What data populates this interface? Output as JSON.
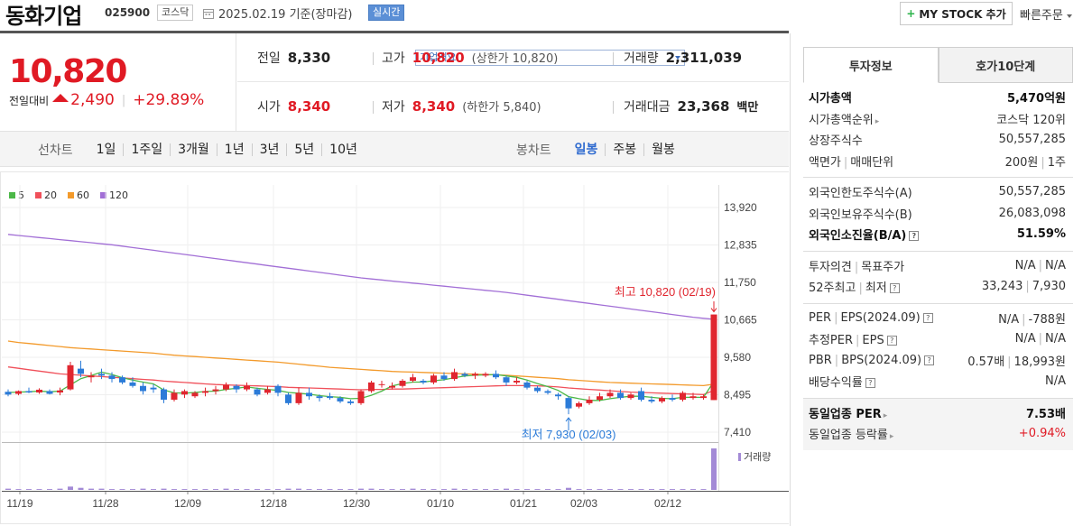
{
  "header": {
    "name": "동화기업",
    "code": "025900",
    "market": "코스닥",
    "date": "2025.02.19 기준(장마감)",
    "live": "실시간",
    "company": "기업개요",
    "mystock": "MY STOCK 추가",
    "quick": "빠른주문"
  },
  "price": {
    "now": "10,820",
    "diff_label": "전일대비",
    "diff": "2,490",
    "rate": "+29.89%"
  },
  "summary": {
    "prev_k": "전일",
    "prev_v": "8,330",
    "high_k": "고가",
    "high_v": "10,820",
    "upper_k": "(상한가",
    "upper_v": "10,820)",
    "volume_k": "거래량",
    "volume_v": "2,311,039",
    "open_k": "시가",
    "open_v": "8,340",
    "low_k": "저가",
    "low_v": "8,340",
    "lower_k": "(하한가",
    "lower_v": "5,840)",
    "amount_k": "거래대금",
    "amount_v": "23,368",
    "amount_u": "백만"
  },
  "periods": {
    "line_label": "선차트",
    "line": [
      "1일",
      "1주일",
      "3개월",
      "1년",
      "3년",
      "5년",
      "10년"
    ],
    "candle_label": "봉차트",
    "candle": [
      "일봉",
      "주봉",
      "월봉"
    ],
    "active": "일봉"
  },
  "chart_data": {
    "type": "candlestick",
    "legend": [
      "5",
      "20",
      "60",
      "120"
    ],
    "colors": {
      "ma5": "#4cb848",
      "ma20": "#f0505a",
      "ma60": "#f39a2b",
      "ma120": "#a26fd6",
      "up": "#e0262f",
      "down": "#2b7bd8",
      "volume": "#a38ad6"
    },
    "y_ticks": [
      "13,920",
      "12,835",
      "11,750",
      "10,665",
      "9,580",
      "8,495",
      "7,410"
    ],
    "ylim": [
      7410,
      13920
    ],
    "x_ticks": [
      "11/19",
      "11/28",
      "12/09",
      "12/18",
      "12/30",
      "01/10",
      "01/21",
      "02/03",
      "02/12"
    ],
    "high_annotation": "최고 10,820 (02/19)",
    "low_annotation": "최저 7,930 (02/03)",
    "volume_label": "거래량",
    "candles": [
      [
        8580,
        8650,
        8450,
        8500
      ],
      [
        8520,
        8620,
        8480,
        8600
      ],
      [
        8600,
        8700,
        8540,
        8560
      ],
      [
        8560,
        8680,
        8520,
        8640
      ],
      [
        8600,
        8650,
        8500,
        8520
      ],
      [
        8560,
        8700,
        8480,
        8620
      ],
      [
        8650,
        9450,
        8620,
        9350
      ],
      [
        9250,
        9480,
        9000,
        9100
      ],
      [
        9000,
        9150,
        8850,
        9050
      ],
      [
        9100,
        9250,
        8950,
        9050
      ],
      [
        9050,
        9150,
        8850,
        8950
      ],
      [
        9000,
        9050,
        8800,
        8850
      ],
      [
        8850,
        9000,
        8700,
        8750
      ],
      [
        8750,
        8850,
        8500,
        8600
      ],
      [
        8700,
        8800,
        8550,
        8650
      ],
      [
        8650,
        8700,
        8250,
        8350
      ],
      [
        8350,
        8650,
        8300,
        8550
      ],
      [
        8500,
        8650,
        8400,
        8600
      ],
      [
        8450,
        8600,
        8400,
        8550
      ],
      [
        8550,
        8700,
        8450,
        8600
      ],
      [
        8600,
        8750,
        8500,
        8650
      ],
      [
        8650,
        8850,
        8600,
        8780
      ],
      [
        8750,
        8800,
        8550,
        8650
      ],
      [
        8650,
        8850,
        8600,
        8750
      ],
      [
        8650,
        8700,
        8450,
        8500
      ],
      [
        8550,
        8750,
        8500,
        8650
      ],
      [
        8750,
        8800,
        8450,
        8550
      ],
      [
        8500,
        8550,
        8200,
        8250
      ],
      [
        8250,
        8700,
        8200,
        8550
      ],
      [
        8550,
        8700,
        8350,
        8450
      ],
      [
        8450,
        8500,
        8300,
        8400
      ],
      [
        8450,
        8550,
        8350,
        8400
      ],
      [
        8400,
        8450,
        8250,
        8300
      ],
      [
        8300,
        8350,
        8200,
        8250
      ],
      [
        8250,
        8650,
        8200,
        8600
      ],
      [
        8600,
        8900,
        8550,
        8850
      ],
      [
        8800,
        8900,
        8700,
        8800
      ],
      [
        8700,
        8850,
        8650,
        8750
      ],
      [
        8750,
        8950,
        8700,
        8900
      ],
      [
        8900,
        9100,
        8850,
        9000
      ],
      [
        8900,
        8950,
        8800,
        8850
      ],
      [
        8850,
        9100,
        8800,
        9050
      ],
      [
        9050,
        9150,
        8900,
        8950
      ],
      [
        8950,
        9250,
        8900,
        9150
      ],
      [
        9100,
        9150,
        9000,
        9050
      ],
      [
        9050,
        9150,
        8950,
        9100
      ],
      [
        9050,
        9150,
        9000,
        9100
      ],
      [
        9100,
        9200,
        8950,
        9000
      ],
      [
        9000,
        9050,
        8750,
        8850
      ],
      [
        8850,
        9000,
        8800,
        8900
      ],
      [
        8850,
        8900,
        8650,
        8700
      ],
      [
        8700,
        8750,
        8550,
        8600
      ],
      [
        8600,
        8650,
        8500,
        8550
      ],
      [
        8500,
        8550,
        8350,
        8450
      ],
      [
        8400,
        8450,
        7930,
        8100
      ],
      [
        8150,
        8300,
        8100,
        8250
      ],
      [
        8250,
        8450,
        8200,
        8350
      ],
      [
        8350,
        8550,
        8300,
        8450
      ],
      [
        8450,
        8650,
        8400,
        8550
      ],
      [
        8550,
        8650,
        8350,
        8400
      ],
      [
        8400,
        8550,
        8350,
        8500
      ],
      [
        8600,
        8700,
        8300,
        8350
      ],
      [
        8350,
        8450,
        8250,
        8300
      ],
      [
        8300,
        8450,
        8250,
        8400
      ],
      [
        8400,
        8500,
        8300,
        8350
      ],
      [
        8350,
        8600,
        8300,
        8550
      ],
      [
        8400,
        8550,
        8350,
        8450
      ],
      [
        8400,
        8500,
        8350,
        8450
      ],
      [
        8340,
        10820,
        8340,
        10820
      ]
    ],
    "ma5": [
      8560,
      8570,
      8580,
      8600,
      8580,
      8600,
      8780,
      8960,
      9050,
      9150,
      9080,
      8990,
      8920,
      8860,
      8810,
      8630,
      8550,
      8540,
      8560,
      8590,
      8600,
      8650,
      8680,
      8720,
      8680,
      8650,
      8620,
      8560,
      8540,
      8510,
      8470,
      8440,
      8420,
      8380,
      8390,
      8480,
      8600,
      8750,
      8820,
      8860,
      8860,
      8900,
      8930,
      8990,
      9040,
      9060,
      9070,
      9080,
      9040,
      9000,
      8920,
      8820,
      8730,
      8620,
      8440,
      8380,
      8330,
      8330,
      8380,
      8420,
      8450,
      8450,
      8420,
      8390,
      8380,
      8420,
      8420,
      8420,
      8880
    ],
    "ma20": [
      9300,
      9260,
      9220,
      9180,
      9140,
      9100,
      9080,
      9060,
      9040,
      9020,
      9000,
      8980,
      8960,
      8940,
      8920,
      8890,
      8870,
      8850,
      8830,
      8810,
      8790,
      8780,
      8770,
      8760,
      8750,
      8740,
      8730,
      8710,
      8700,
      8690,
      8680,
      8670,
      8660,
      8650,
      8640,
      8650,
      8650,
      8660,
      8660,
      8670,
      8680,
      8690,
      8700,
      8710,
      8720,
      8730,
      8740,
      8750,
      8760,
      8760,
      8760,
      8750,
      8740,
      8720,
      8690,
      8670,
      8650,
      8630,
      8610,
      8590,
      8570,
      8560,
      8550,
      8540,
      8530,
      8520,
      8510,
      8500,
      8620
    ],
    "ma60": [
      10050,
      10010,
      9980,
      9950,
      9920,
      9890,
      9860,
      9840,
      9820,
      9800,
      9780,
      9760,
      9740,
      9720,
      9700,
      9670,
      9640,
      9620,
      9600,
      9580,
      9560,
      9540,
      9520,
      9500,
      9480,
      9460,
      9440,
      9410,
      9380,
      9350,
      9320,
      9290,
      9270,
      9250,
      9230,
      9210,
      9190,
      9170,
      9160,
      9150,
      9140,
      9130,
      9120,
      9110,
      9100,
      9090,
      9080,
      9070,
      9060,
      9040,
      9020,
      9000,
      8980,
      8960,
      8930,
      8910,
      8890,
      8870,
      8850,
      8840,
      8830,
      8820,
      8810,
      8800,
      8790,
      8780,
      8770,
      8760,
      8800
    ],
    "ma120": [
      13140,
      13110,
      13080,
      13050,
      13020,
      12990,
      12960,
      12930,
      12900,
      12870,
      12840,
      12800,
      12760,
      12720,
      12680,
      12640,
      12600,
      12560,
      12520,
      12480,
      12440,
      12400,
      12360,
      12320,
      12280,
      12240,
      12200,
      12160,
      12120,
      12080,
      12040,
      12000,
      11960,
      11920,
      11880,
      11850,
      11820,
      11790,
      11760,
      11730,
      11700,
      11670,
      11640,
      11610,
      11580,
      11550,
      11520,
      11490,
      11460,
      11420,
      11380,
      11340,
      11300,
      11260,
      11220,
      11180,
      11140,
      11100,
      11060,
      11020,
      10980,
      10940,
      10900,
      10860,
      10820,
      10780,
      10740,
      10710,
      10680
    ],
    "volume": [
      0.03,
      0.02,
      0.02,
      0.02,
      0.02,
      0.03,
      0.08,
      0.05,
      0.03,
      0.03,
      0.02,
      0.02,
      0.02,
      0.03,
      0.02,
      0.03,
      0.02,
      0.02,
      0.02,
      0.02,
      0.02,
      0.03,
      0.02,
      0.02,
      0.02,
      0.02,
      0.02,
      0.03,
      0.03,
      0.02,
      0.02,
      0.02,
      0.02,
      0.02,
      0.03,
      0.03,
      0.02,
      0.02,
      0.02,
      0.03,
      0.02,
      0.02,
      0.02,
      0.03,
      0.02,
      0.02,
      0.02,
      0.02,
      0.03,
      0.02,
      0.02,
      0.02,
      0.02,
      0.02,
      0.05,
      0.02,
      0.02,
      0.02,
      0.02,
      0.02,
      0.02,
      0.02,
      0.02,
      0.02,
      0.02,
      0.02,
      0.02,
      0.02,
      1.0
    ]
  },
  "right": {
    "tabs": [
      "투자정보",
      "호가10단계"
    ],
    "s1": [
      {
        "k": "시가총액",
        "v": "5,470억원",
        "bold": true
      },
      {
        "k": "시가총액순위",
        "v": "코스닥 120위",
        "arrow": true
      },
      {
        "k": "상장주식수",
        "v": "50,557,285"
      },
      {
        "k": "액면가",
        "k2": "매매단위",
        "v": "200원",
        "v2": "1주"
      }
    ],
    "s2": [
      {
        "k": "외국인한도주식수(A)",
        "v": "50,557,285"
      },
      {
        "k": "외국인보유주식수(B)",
        "v": "26,083,098"
      },
      {
        "k": "외국인소진율(B/A)",
        "v": "51.59%",
        "bold": true,
        "q": true
      }
    ],
    "s3": [
      {
        "k": "투자의견",
        "k2": "목표주가",
        "v": "N/A",
        "v2": "N/A"
      },
      {
        "k": "52주최고",
        "k2": "최저",
        "v": "33,243",
        "v2": "7,930",
        "q": true
      }
    ],
    "s4": [
      {
        "k": "PER",
        "k2": "EPS(2024.09)",
        "v": "N/A",
        "v2": "-788원",
        "q": true
      },
      {
        "k": "추정PER",
        "k2": "EPS",
        "v": "N/A",
        "v2": "N/A",
        "q": true
      },
      {
        "k": "PBR",
        "k2": "BPS(2024.09)",
        "v": "0.57배",
        "v2": "18,993원",
        "q": true
      },
      {
        "k": "배당수익률",
        "v": "N/A",
        "q": true
      }
    ],
    "s5": [
      {
        "k": "동일업종 PER",
        "v": "7.53배",
        "bold": true,
        "arrow": true
      },
      {
        "k": "동일업종 등락률",
        "v": "+0.94%",
        "red": true,
        "arrow": true
      }
    ]
  }
}
